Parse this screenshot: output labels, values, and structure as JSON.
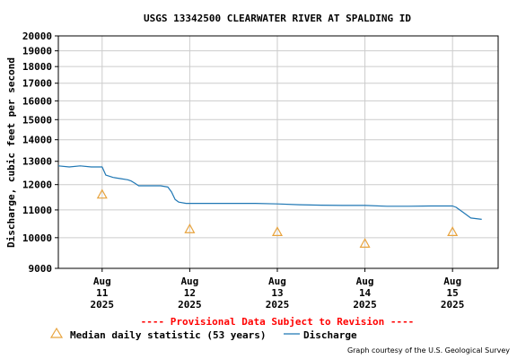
{
  "chart_data": {
    "type": "line",
    "title": "USGS 13342500 CLEARWATER RIVER AT SPALDING ID",
    "ylabel": "Discharge, cubic feet per second",
    "xlabel": "",
    "y_scale": "log",
    "ylim": [
      9000,
      20000
    ],
    "y_ticks": [
      9000,
      10000,
      11000,
      12000,
      13000,
      14000,
      15000,
      16000,
      17000,
      18000,
      19000,
      20000
    ],
    "y_tick_labels": [
      "9000",
      "10000",
      "11000",
      "12000",
      "13000",
      "14000",
      "15000",
      "16000",
      "17000",
      "18000",
      "19000",
      "20000"
    ],
    "xlim": [
      "2025-08-10T12:00",
      "2025-08-15T12:30"
    ],
    "x_ticks": [
      {
        "date": "2025-08-11T00:00",
        "label": [
          "Aug",
          "11",
          "2025"
        ]
      },
      {
        "date": "2025-08-12T00:00",
        "label": [
          "Aug",
          "12",
          "2025"
        ]
      },
      {
        "date": "2025-08-13T00:00",
        "label": [
          "Aug",
          "13",
          "2025"
        ]
      },
      {
        "date": "2025-08-14T00:00",
        "label": [
          "Aug",
          "14",
          "2025"
        ]
      },
      {
        "date": "2025-08-15T00:00",
        "label": [
          "Aug",
          "15",
          "2025"
        ]
      }
    ],
    "grid": true,
    "legend_position": "bottom",
    "series": [
      {
        "name": "Discharge",
        "color": "#1f77b4",
        "points": [
          [
            "2025-08-10T12:00",
            12800
          ],
          [
            "2025-08-10T15:00",
            12750
          ],
          [
            "2025-08-10T18:00",
            12800
          ],
          [
            "2025-08-10T21:00",
            12750
          ],
          [
            "2025-08-11T00:00",
            12750
          ],
          [
            "2025-08-11T01:00",
            12400
          ],
          [
            "2025-08-11T03:00",
            12300
          ],
          [
            "2025-08-11T05:00",
            12250
          ],
          [
            "2025-08-11T07:00",
            12200
          ],
          [
            "2025-08-11T08:00",
            12150
          ],
          [
            "2025-08-11T09:00",
            12050
          ],
          [
            "2025-08-11T10:00",
            11950
          ],
          [
            "2025-08-11T13:00",
            11950
          ],
          [
            "2025-08-11T16:00",
            11950
          ],
          [
            "2025-08-11T18:00",
            11900
          ],
          [
            "2025-08-11T19:00",
            11700
          ],
          [
            "2025-08-11T20:00",
            11400
          ],
          [
            "2025-08-11T21:00",
            11300
          ],
          [
            "2025-08-11T23:00",
            11250
          ],
          [
            "2025-08-12T06:00",
            11250
          ],
          [
            "2025-08-12T12:00",
            11250
          ],
          [
            "2025-08-12T18:00",
            11250
          ],
          [
            "2025-08-13T00:00",
            11230
          ],
          [
            "2025-08-13T06:00",
            11200
          ],
          [
            "2025-08-13T12:00",
            11180
          ],
          [
            "2025-08-13T18:00",
            11170
          ],
          [
            "2025-08-14T00:00",
            11170
          ],
          [
            "2025-08-14T06:00",
            11140
          ],
          [
            "2025-08-14T12:00",
            11140
          ],
          [
            "2025-08-14T18:00",
            11150
          ],
          [
            "2025-08-15T00:00",
            11150
          ],
          [
            "2025-08-15T01:00",
            11100
          ],
          [
            "2025-08-15T03:00",
            10900
          ],
          [
            "2025-08-15T05:00",
            10700
          ],
          [
            "2025-08-15T08:00",
            10650
          ]
        ]
      },
      {
        "name": "Median daily statistic (53 years)",
        "color": "#e8a33d",
        "marker": "triangle",
        "points": [
          [
            "2025-08-11T00:00",
            11600
          ],
          [
            "2025-08-12T00:00",
            10300
          ],
          [
            "2025-08-13T00:00",
            10200
          ],
          [
            "2025-08-14T00:00",
            9800
          ],
          [
            "2025-08-15T00:00",
            10200
          ]
        ]
      }
    ]
  },
  "notice": {
    "text": "---- Provisional Data Subject to Revision ----",
    "color": "#ff0000"
  },
  "legend": {
    "median_label": "Median daily statistic (53 years)",
    "discharge_label": "Discharge"
  },
  "credit": "Graph courtesy of the U.S. Geological Survey",
  "colors": {
    "grid": "#cccccc",
    "axes": "#000000",
    "discharge": "#1f77b4",
    "median": "#e8a33d"
  }
}
